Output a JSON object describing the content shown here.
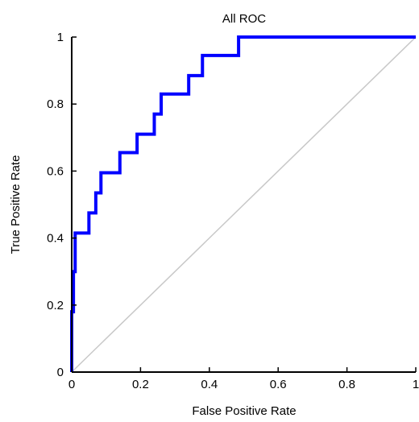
{
  "chart_data": {
    "type": "line",
    "title": "All ROC",
    "xlabel": "False Positive Rate",
    "ylabel": "True Positive Rate",
    "xlim": [
      0,
      1
    ],
    "ylim": [
      0,
      1
    ],
    "x_ticks": [
      0,
      0.2,
      0.4,
      0.6,
      0.8,
      1
    ],
    "x_tick_labels": [
      "0",
      "0.2",
      "0.4",
      "0.6",
      "0.8",
      "1"
    ],
    "y_ticks": [
      0,
      0.2,
      0.4,
      0.6,
      0.8,
      1
    ],
    "y_tick_labels": [
      "0",
      "0.2",
      "0.4",
      "0.6",
      "0.8",
      "1"
    ],
    "grid": false,
    "legend": "none",
    "series": [
      {
        "color": "#0000ff",
        "x": [
          0,
          0,
          0.005,
          0.005,
          0.01,
          0.01,
          0.05,
          0.05,
          0.07,
          0.07,
          0.085,
          0.085,
          0.14,
          0.14,
          0.19,
          0.19,
          0.24,
          0.24,
          0.26,
          0.26,
          0.34,
          0.34,
          0.38,
          0.38,
          0.485,
          0.485,
          1
        ],
        "y": [
          0,
          0.18,
          0.18,
          0.3,
          0.3,
          0.415,
          0.415,
          0.475,
          0.475,
          0.535,
          0.535,
          0.595,
          0.595,
          0.655,
          0.655,
          0.71,
          0.71,
          0.77,
          0.77,
          0.83,
          0.83,
          0.885,
          0.885,
          0.945,
          0.945,
          1,
          1
        ]
      },
      {
        "color": "#c8c8c8",
        "x": [
          0,
          1
        ],
        "y": [
          0,
          1
        ]
      }
    ]
  }
}
